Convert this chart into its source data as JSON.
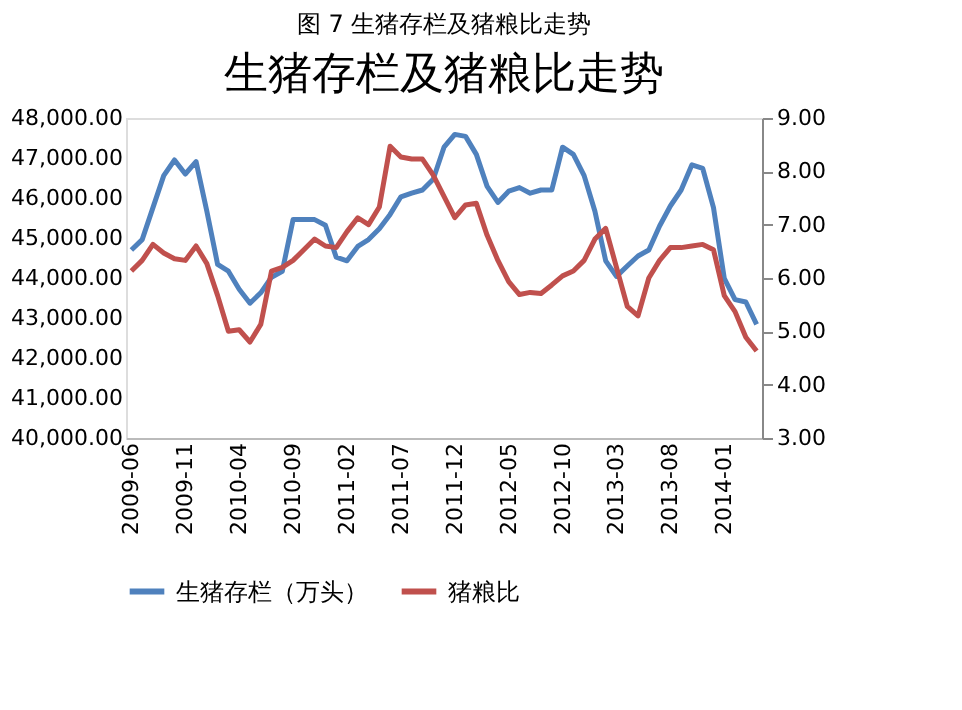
{
  "chart_data": {
    "type": "line",
    "title": "图 7  生猪存栏及猪粮比走势",
    "subtitle": "生猪存栏及猪粮比走势",
    "categories": [
      "2009-06",
      null,
      null,
      null,
      null,
      "2009-11",
      null,
      null,
      null,
      null,
      "2010-04",
      null,
      null,
      null,
      null,
      "2010-09",
      null,
      null,
      null,
      null,
      "2011-02",
      null,
      null,
      null,
      null,
      "2011-07",
      null,
      null,
      null,
      null,
      "2011-12",
      null,
      null,
      null,
      null,
      "2012-05",
      null,
      null,
      null,
      null,
      "2012-10",
      null,
      null,
      null,
      null,
      "2013-03",
      null,
      null,
      null,
      null,
      "2013-08",
      null,
      null,
      null,
      null,
      "2014-01",
      null,
      null,
      null
    ],
    "series": [
      {
        "name": "生猪存栏（万头）",
        "color": "#4f81bd",
        "values": [
          44700,
          44960,
          45760,
          46560,
          46950,
          46600,
          46910,
          45670,
          44340,
          44170,
          43720,
          43370,
          43630,
          44020,
          44170,
          45460,
          45460,
          45460,
          45320,
          44520,
          44430,
          44790,
          44960,
          45230,
          45590,
          46030,
          46120,
          46200,
          46470,
          47270,
          47590,
          47540,
          47090,
          46290,
          45890,
          46170,
          46260,
          46120,
          46200,
          46200,
          47270,
          47090,
          46560,
          45670,
          44430,
          44040,
          44300,
          44550,
          44700,
          45300,
          45800,
          46200,
          46830,
          46740,
          45760,
          43990,
          43460,
          43400,
          42840
        ]
      },
      {
        "name": "猪粮比",
        "color": "#c0504d",
        "axis": "y2",
        "values": [
          6.13,
          6.33,
          6.63,
          6.47,
          6.36,
          6.33,
          6.6,
          6.27,
          5.67,
          5.0,
          5.03,
          4.8,
          5.13,
          6.13,
          6.2,
          6.33,
          6.53,
          6.73,
          6.6,
          6.57,
          6.87,
          7.13,
          7.0,
          7.33,
          8.47,
          8.27,
          8.23,
          8.23,
          7.93,
          7.53,
          7.13,
          7.37,
          7.4,
          6.8,
          6.33,
          5.93,
          5.69,
          5.73,
          5.71,
          5.87,
          6.04,
          6.13,
          6.33,
          6.73,
          6.93,
          6.2,
          5.47,
          5.29,
          6.0,
          6.33,
          6.57,
          6.57,
          6.6,
          6.63,
          6.53,
          5.67,
          5.37,
          4.89,
          4.63
        ]
      }
    ],
    "ylim": [
      40000,
      48000
    ],
    "yticks": [
      {
        "value": 40000,
        "label": "40,000.00"
      },
      {
        "value": 41000,
        "label": "41,000.00"
      },
      {
        "value": 42000,
        "label": "42,000.00"
      },
      {
        "value": 43000,
        "label": "43,000.00"
      },
      {
        "value": 44000,
        "label": "44,000.00"
      },
      {
        "value": 45000,
        "label": "45,000.00"
      },
      {
        "value": 46000,
        "label": "46,000.00"
      },
      {
        "value": 47000,
        "label": "47,000.00"
      },
      {
        "value": 48000,
        "label": "48,000.00"
      }
    ],
    "y2lim": [
      3,
      9
    ],
    "y2ticks": [
      {
        "value": 3,
        "label": "3.00"
      },
      {
        "value": 4,
        "label": "4.00"
      },
      {
        "value": 5,
        "label": "5.00"
      },
      {
        "value": 6,
        "label": "6.00"
      },
      {
        "value": 7,
        "label": "7.00"
      },
      {
        "value": 8,
        "label": "8.00"
      },
      {
        "value": 9,
        "label": "9.00"
      }
    ],
    "grid": false,
    "legend": "bottom"
  }
}
